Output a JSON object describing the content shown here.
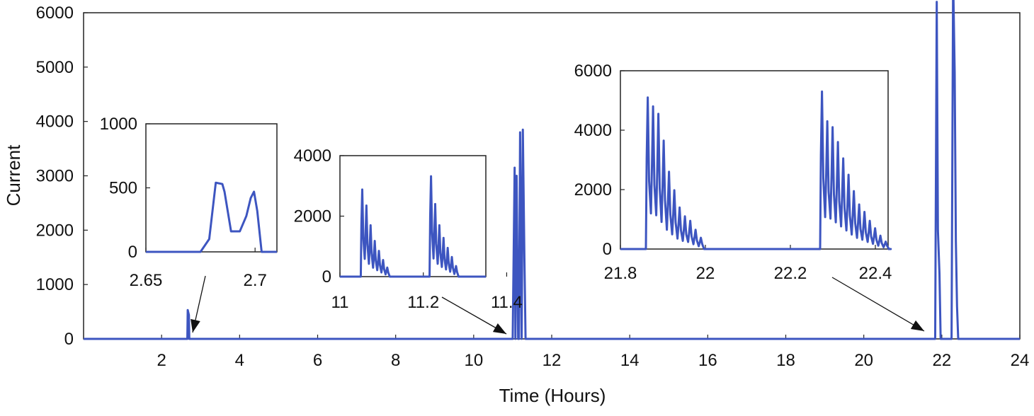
{
  "chart_data": {
    "type": "line",
    "xlabel": "Time (Hours)",
    "ylabel": "Current",
    "main": {
      "xlim": [
        0,
        24
      ],
      "ylim": [
        0,
        6000
      ],
      "xticks": [
        2,
        4,
        6,
        8,
        10,
        12,
        14,
        16,
        18,
        20,
        22,
        24
      ],
      "yticks": [
        0,
        1000,
        2000,
        3000,
        4000,
        5000,
        6000
      ],
      "x": [
        0,
        2.66,
        2.67,
        2.7,
        2.71,
        11.0,
        11.05,
        11.07,
        11.1,
        11.14,
        11.16,
        11.19,
        11.23,
        11.26,
        11.3,
        11.33,
        21.83,
        21.87,
        21.9,
        21.94,
        21.97,
        22.25,
        22.29,
        22.33,
        22.36,
        22.39,
        22.42,
        24
      ],
      "y": [
        0,
        0,
        530,
        440,
        0,
        0,
        3150,
        0,
        3000,
        0,
        0,
        3800,
        0,
        3850,
        1500,
        0,
        0,
        6200,
        2000,
        1200,
        0,
        0,
        6650,
        4900,
        1800,
        600,
        0,
        0
      ]
    },
    "insets": [
      {
        "xlim": [
          2.65,
          2.71
        ],
        "ylim": [
          0,
          1000
        ],
        "xticks": [
          2.65,
          2.7
        ],
        "yticks": [
          0,
          500,
          1000
        ],
        "x": [
          2.65,
          2.675,
          2.679,
          2.682,
          2.685,
          2.686,
          2.689,
          2.693,
          2.696,
          2.698,
          2.6995,
          2.701,
          2.703,
          2.71
        ],
        "y": [
          0,
          0,
          100,
          540,
          530,
          470,
          160,
          160,
          280,
          420,
          470,
          320,
          0,
          0
        ]
      },
      {
        "xlim": [
          11.0,
          11.35
        ],
        "ylim": [
          0,
          4000
        ],
        "xticks": [
          11,
          11.2,
          11.4
        ],
        "yticks": [
          0,
          2000,
          4000
        ],
        "bursts": [
          {
            "start": 11.05,
            "peaks": [
              2880,
              2350,
              1700,
              1180,
              850,
              550,
              300
            ],
            "step": 0.01
          },
          {
            "start": 11.215,
            "peaks": [
              3320,
              2400,
              1700,
              1280,
              950,
              650,
              350
            ],
            "step": 0.01
          }
        ]
      },
      {
        "xlim": [
          21.8,
          22.43
        ],
        "ylim": [
          0,
          6000
        ],
        "xticks": [
          21.8,
          22,
          22.2,
          22.4
        ],
        "yticks": [
          0,
          2000,
          4000,
          6000
        ],
        "bursts": [
          {
            "start": 21.86,
            "peaks": [
              5100,
              4800,
              4550,
              3650,
              2600,
              1980,
              1400,
              1100,
              950,
              650,
              380
            ],
            "step": 0.0125
          },
          {
            "start": 22.27,
            "peaks": [
              5300,
              4300,
              4100,
              3600,
              3050,
              2500,
              1950,
              1500,
              1250,
              950,
              700,
              450,
              250
            ],
            "step": 0.0125
          }
        ]
      }
    ]
  }
}
